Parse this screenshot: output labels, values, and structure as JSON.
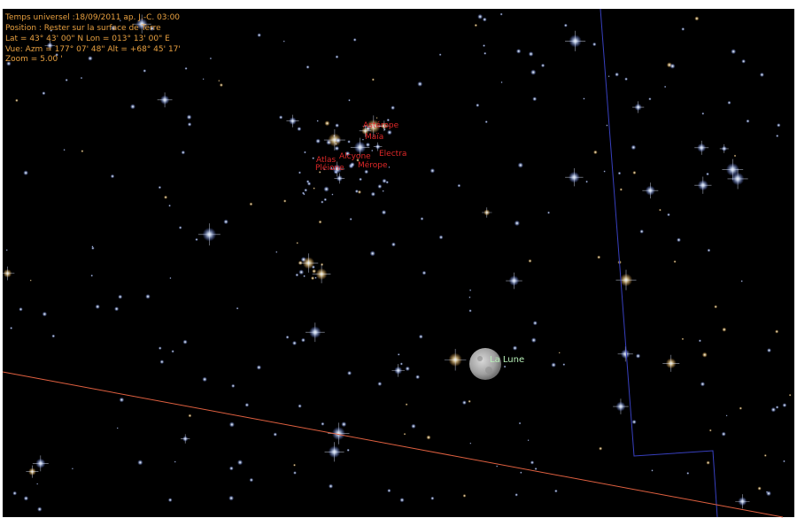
{
  "info": [
    "Temps universel :18/09/2011 ap. J.-C. 03:00",
    "Position : Rester sur la surface de Terre",
    "Lat = 43° 43' 00\" N Lon = 013° 13' 00\" E",
    "Vue: Azm = 177° 07' 48\" Alt = +68° 45' 17'",
    "Zoom = 5.00 '"
  ],
  "stars": [
    "Astérope",
    "Maïa",
    "Electra",
    "Alcyone",
    "Atlas",
    "Pléione",
    "Mérope"
  ],
  "moon": "La Lune"
}
